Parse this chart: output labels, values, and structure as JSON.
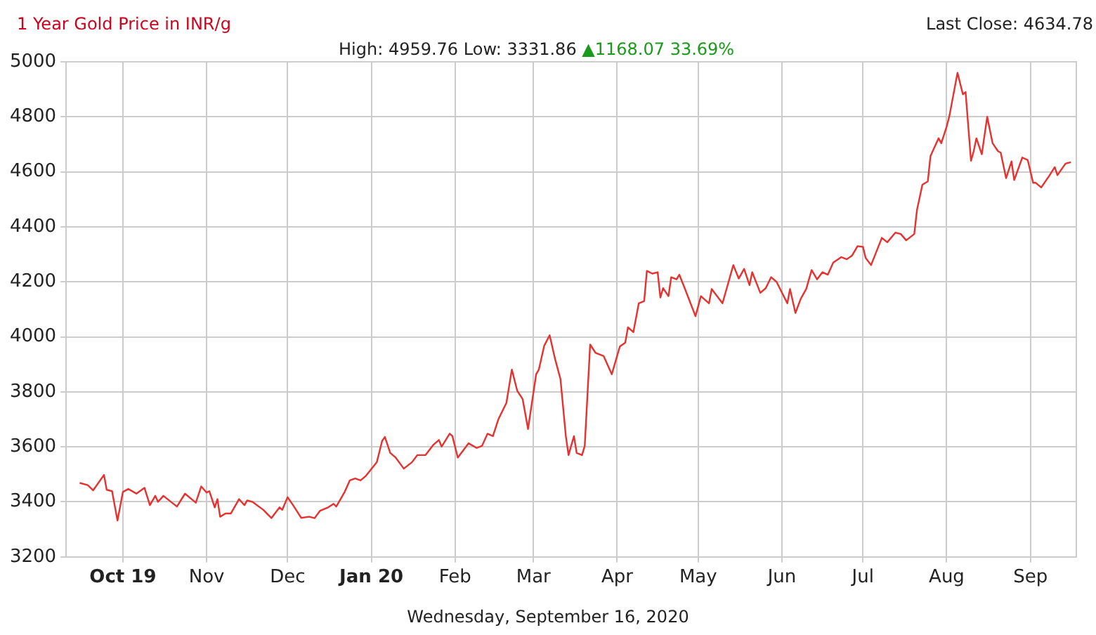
{
  "chart_data": {
    "type": "line",
    "title": "1 Year Gold Price in INR/g",
    "subtitle": "High: 4959.76 Low: 3331.86",
    "annotations": [
      "▲1168.07 33.69%",
      "Last Close: 4634.78",
      "Wednesday, September 16, 2020"
    ],
    "xlim": [
      "2019-09-10",
      "2020-09-18"
    ],
    "xticks": [
      {
        "value": "2019-10-01",
        "label": "Oct 19"
      },
      {
        "value": "2019-11-01",
        "label": "Nov"
      },
      {
        "value": "2019-12-01",
        "label": "Dec"
      },
      {
        "value": "2020-01-01",
        "label": "Jan 20"
      },
      {
        "value": "2020-02-01",
        "label": "Feb"
      },
      {
        "value": "2020-03-01",
        "label": "Mar"
      },
      {
        "value": "2020-04-01",
        "label": "Apr"
      },
      {
        "value": "2020-05-01",
        "label": "May"
      },
      {
        "value": "2020-06-01",
        "label": "Jun"
      },
      {
        "value": "2020-07-01",
        "label": "Jul"
      },
      {
        "value": "2020-08-01",
        "label": "Aug"
      },
      {
        "value": "2020-09-01",
        "label": "Sep"
      }
    ],
    "ylim": [
      3200,
      5000
    ],
    "yticks": [
      3200,
      3400,
      3600,
      3800,
      4000,
      4200,
      4400,
      4600,
      4800,
      5000
    ],
    "grid": true,
    "legend": false,
    "marker": "none",
    "line_style": "solid",
    "series": [
      {
        "color": "#e8312f",
        "x": [
          "2019-09-15",
          "2019-09-18",
          "2019-09-20",
          "2019-09-24",
          "2019-09-25",
          "2019-09-27",
          "2019-09-29",
          "2019-10-01",
          "2019-10-03",
          "2019-10-06",
          "2019-10-09",
          "2019-10-11",
          "2019-10-13",
          "2019-10-14",
          "2019-10-16",
          "2019-10-21",
          "2019-10-24",
          "2019-10-28",
          "2019-10-30",
          "2019-11-01",
          "2019-11-02",
          "2019-11-04",
          "2019-11-05",
          "2019-11-06",
          "2019-11-08",
          "2019-11-10",
          "2019-11-13",
          "2019-11-15",
          "2019-11-16",
          "2019-11-18",
          "2019-11-22",
          "2019-11-25",
          "2019-11-28",
          "2019-11-29",
          "2019-12-01",
          "2019-12-03",
          "2019-12-06",
          "2019-12-09",
          "2019-12-11",
          "2019-12-13",
          "2019-12-16",
          "2019-12-18",
          "2019-12-19",
          "2019-12-22",
          "2019-12-24",
          "2019-12-26",
          "2019-12-28",
          "2019-12-30",
          "2020-01-03",
          "2020-01-05",
          "2020-01-06",
          "2020-01-08",
          "2020-01-10",
          "2020-01-13",
          "2020-01-16",
          "2020-01-18",
          "2020-01-21",
          "2020-01-24",
          "2020-01-26",
          "2020-01-27",
          "2020-01-30",
          "2020-01-31",
          "2020-02-02",
          "2020-02-06",
          "2020-02-09",
          "2020-02-11",
          "2020-02-13",
          "2020-02-15",
          "2020-02-17",
          "2020-02-20",
          "2020-02-22",
          "2020-02-24",
          "2020-02-26",
          "2020-02-28",
          "2020-03-02",
          "2020-03-03",
          "2020-03-05",
          "2020-03-07",
          "2020-03-09",
          "2020-03-11",
          "2020-03-13",
          "2020-03-14",
          "2020-03-16",
          "2020-03-17",
          "2020-03-19",
          "2020-03-20",
          "2020-03-22",
          "2020-03-24",
          "2020-03-27",
          "2020-03-30",
          "2020-04-02",
          "2020-04-04",
          "2020-04-05",
          "2020-04-07",
          "2020-04-09",
          "2020-04-11",
          "2020-04-12",
          "2020-04-14",
          "2020-04-16",
          "2020-04-17",
          "2020-04-18",
          "2020-04-20",
          "2020-04-21",
          "2020-04-23",
          "2020-04-24",
          "2020-04-26",
          "2020-04-30",
          "2020-05-02",
          "2020-05-05",
          "2020-05-06",
          "2020-05-10",
          "2020-05-14",
          "2020-05-16",
          "2020-05-18",
          "2020-05-20",
          "2020-05-21",
          "2020-05-24",
          "2020-05-26",
          "2020-05-28",
          "2020-05-30",
          "2020-06-03",
          "2020-06-04",
          "2020-06-06",
          "2020-06-08",
          "2020-06-10",
          "2020-06-12",
          "2020-06-14",
          "2020-06-16",
          "2020-06-18",
          "2020-06-20",
          "2020-06-23",
          "2020-06-25",
          "2020-06-27",
          "2020-06-29",
          "2020-07-01",
          "2020-07-02",
          "2020-07-04",
          "2020-07-08",
          "2020-07-10",
          "2020-07-13",
          "2020-07-15",
          "2020-07-17",
          "2020-07-20",
          "2020-07-21",
          "2020-07-23",
          "2020-07-25",
          "2020-07-26",
          "2020-07-29",
          "2020-07-30",
          "2020-08-01",
          "2020-08-02",
          "2020-08-05",
          "2020-08-07",
          "2020-08-08",
          "2020-08-10",
          "2020-08-11",
          "2020-08-12",
          "2020-08-14",
          "2020-08-16",
          "2020-08-18",
          "2020-08-20",
          "2020-08-21",
          "2020-08-23",
          "2020-08-25",
          "2020-08-26",
          "2020-08-29",
          "2020-08-31",
          "2020-09-02",
          "2020-09-03",
          "2020-09-05",
          "2020-09-08",
          "2020-09-10",
          "2020-09-11",
          "2020-09-14",
          "2020-09-16"
        ],
        "values": [
          3469,
          3461,
          3442,
          3498,
          3444,
          3439,
          3332,
          3436,
          3447,
          3430,
          3451,
          3388,
          3422,
          3400,
          3422,
          3383,
          3430,
          3397,
          3456,
          3434,
          3439,
          3380,
          3410,
          3346,
          3358,
          3358,
          3410,
          3388,
          3405,
          3400,
          3371,
          3341,
          3380,
          3371,
          3417,
          3388,
          3342,
          3346,
          3341,
          3368,
          3380,
          3393,
          3383,
          3434,
          3478,
          3485,
          3478,
          3495,
          3544,
          3622,
          3636,
          3578,
          3561,
          3521,
          3544,
          3570,
          3570,
          3608,
          3625,
          3601,
          3648,
          3639,
          3561,
          3613,
          3596,
          3604,
          3648,
          3639,
          3700,
          3760,
          3881,
          3804,
          3774,
          3665,
          3864,
          3881,
          3968,
          4006,
          3920,
          3847,
          3639,
          3570,
          3639,
          3578,
          3570,
          3604,
          3972,
          3942,
          3930,
          3864,
          3965,
          3979,
          4035,
          4017,
          4122,
          4130,
          4240,
          4230,
          4235,
          4143,
          4177,
          4148,
          4217,
          4209,
          4226,
          4177,
          4075,
          4148,
          4122,
          4174,
          4122,
          4261,
          4212,
          4247,
          4188,
          4235,
          4160,
          4177,
          4217,
          4200,
          4122,
          4174,
          4087,
          4139,
          4174,
          4243,
          4209,
          4235,
          4226,
          4270,
          4290,
          4282,
          4296,
          4330,
          4327,
          4287,
          4261,
          4360,
          4344,
          4379,
          4374,
          4351,
          4374,
          4461,
          4553,
          4565,
          4657,
          4722,
          4704,
          4765,
          4803,
          4960,
          4882,
          4890,
          4640,
          4675,
          4722,
          4664,
          4800,
          4704,
          4675,
          4670,
          4577,
          4638,
          4570,
          4652,
          4643,
          4560,
          4560,
          4543,
          4586,
          4617,
          4588,
          4630,
          4635
        ]
      }
    ]
  }
}
